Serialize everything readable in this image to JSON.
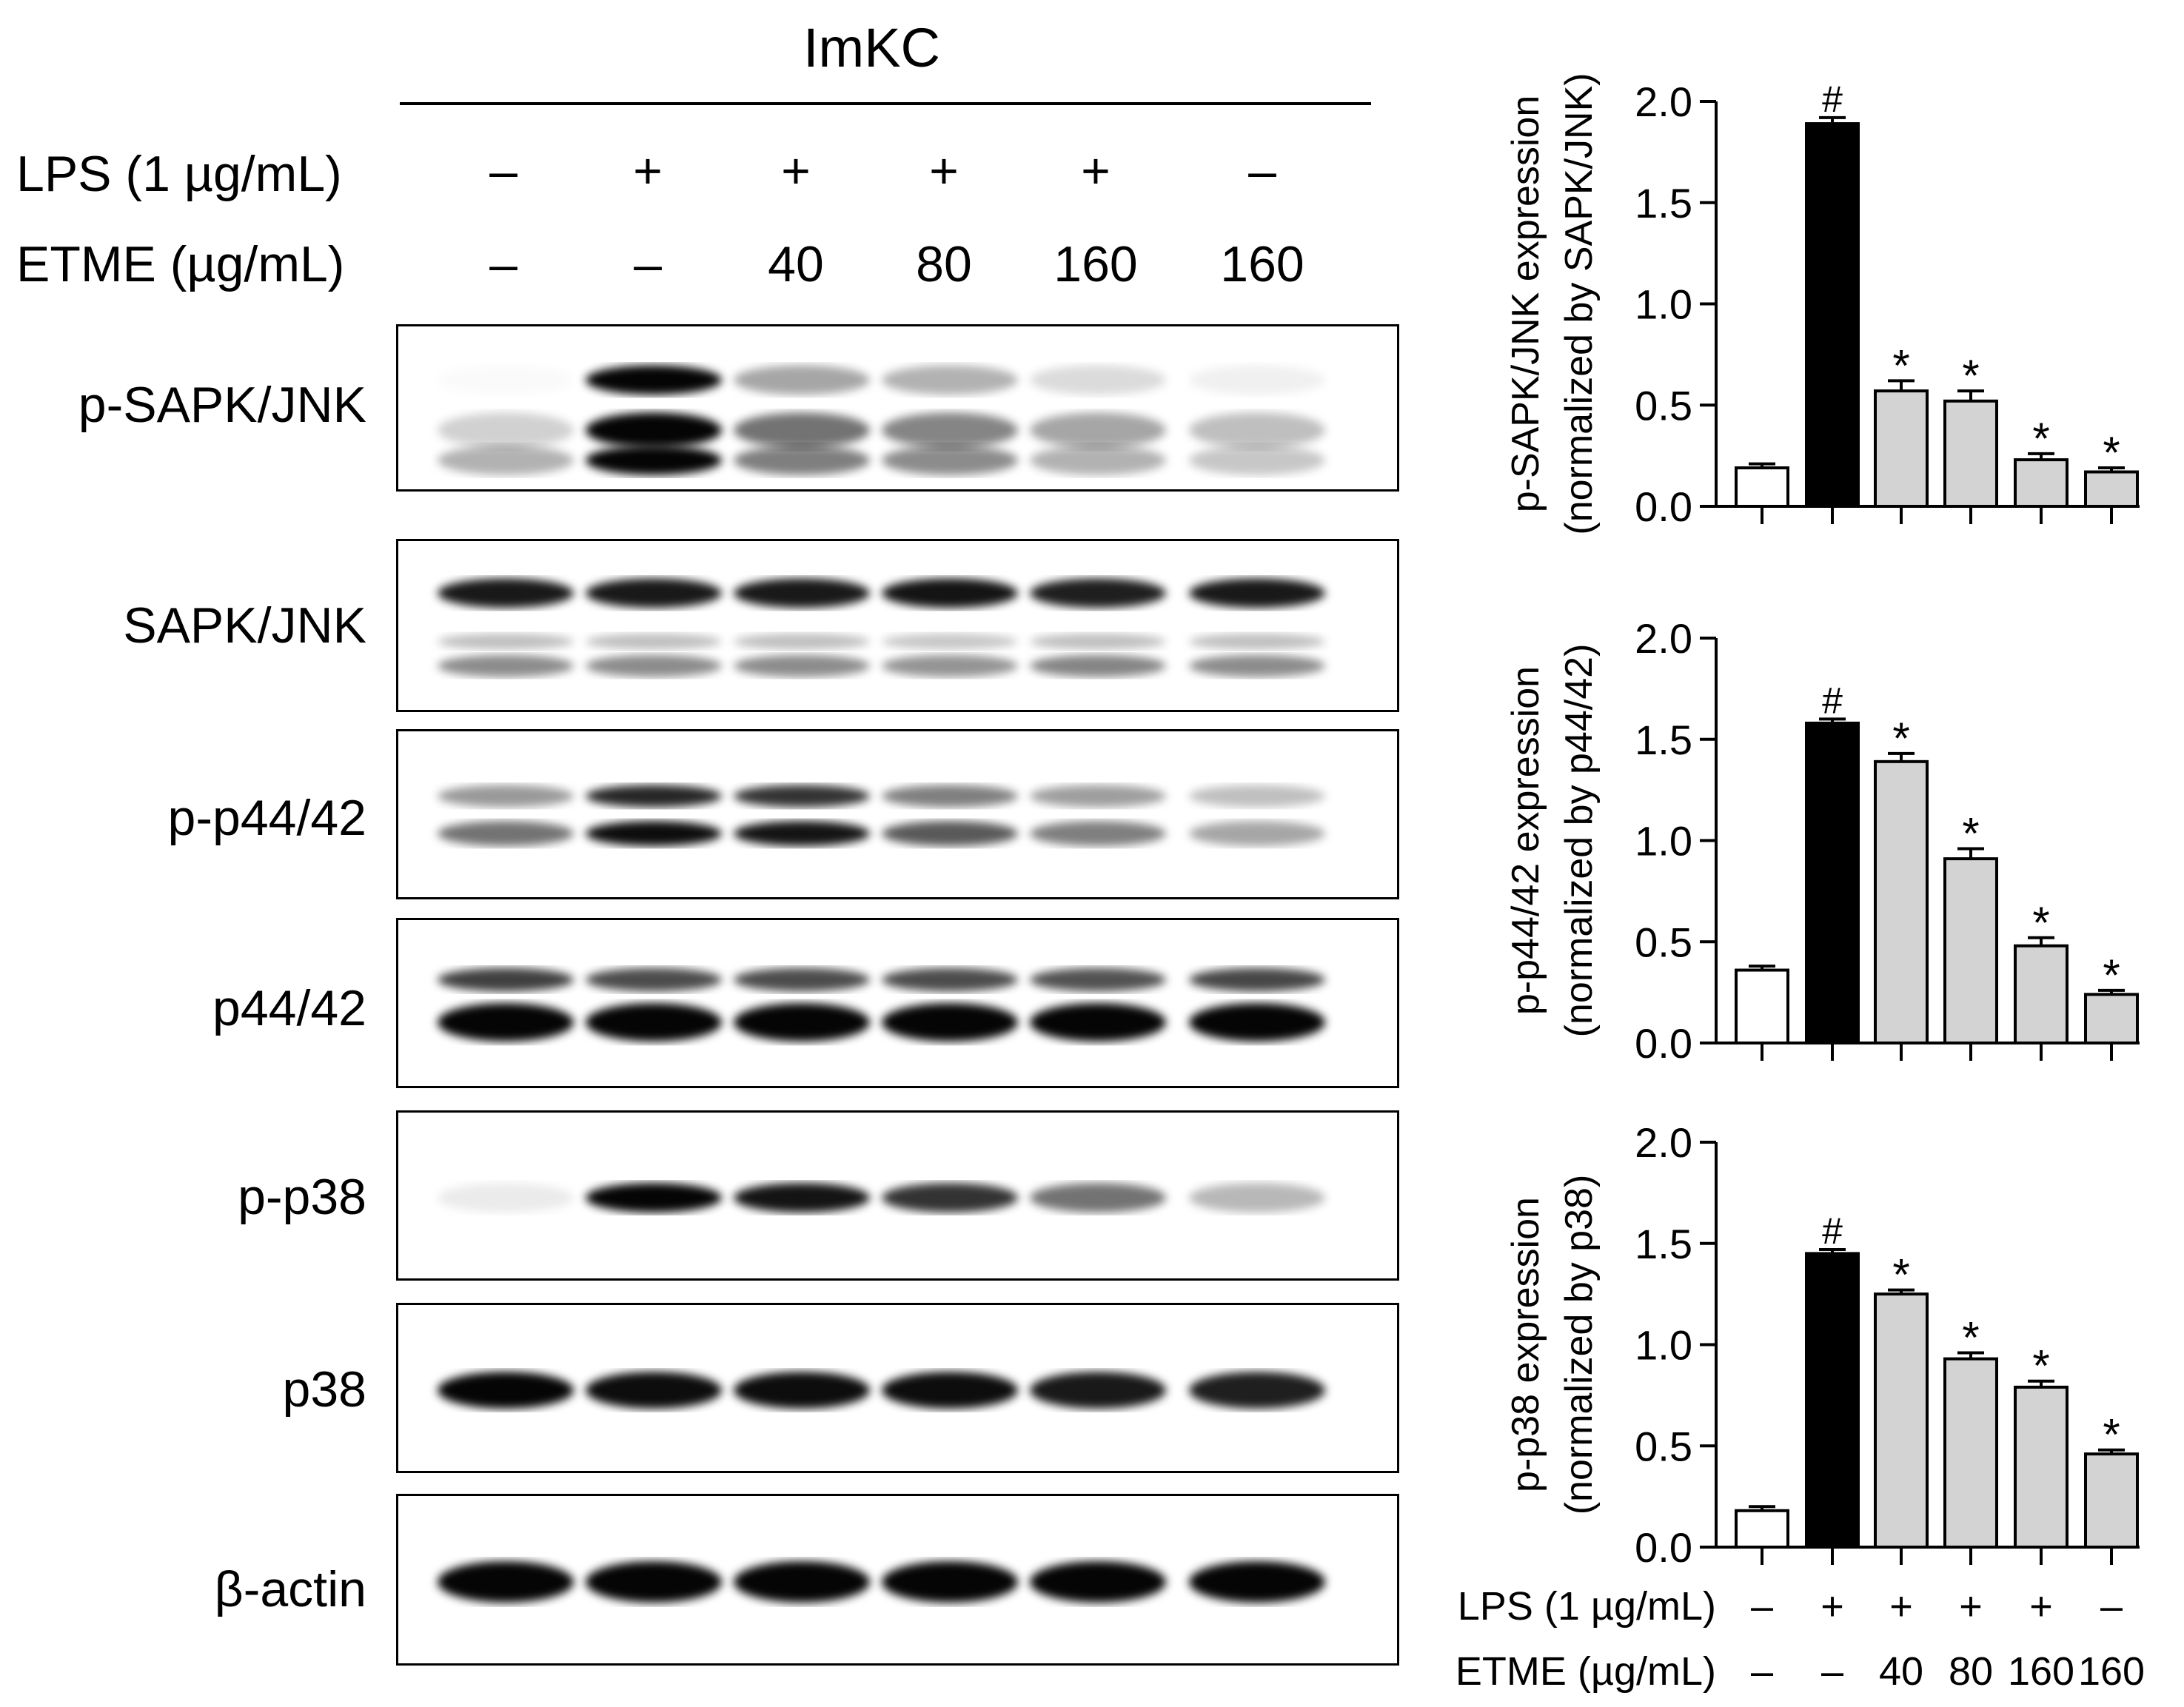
{
  "blot_panel": {
    "cell_line": "ImKC",
    "conditions": [
      {
        "label": "LPS (1 µg/mL)",
        "symbols": [
          "–",
          "+",
          "+",
          "+",
          "+",
          "–"
        ]
      },
      {
        "label": "ETME (µg/mL)",
        "symbols": [
          "–",
          "–",
          "40",
          "80",
          "160",
          "160"
        ]
      }
    ],
    "blots": [
      {
        "label": "p-SAPK/JNK",
        "bands": [
          [
            0.22,
            0.28,
            0.92,
            0.95,
            0.4,
            0.55,
            0.32,
            0.48,
            0.22,
            0.38,
            0.18,
            0.3
          ],
          [
            0.28
          ]
        ]
      },
      {
        "label": "SAPK/JNK"
      },
      {
        "label": "p-p44/42"
      },
      {
        "label": "p44/42"
      },
      {
        "label": "p-p38"
      },
      {
        "label": "p38"
      },
      {
        "label": "β-actin"
      }
    ]
  },
  "chart_data": [
    {
      "type": "bar",
      "ylabel_line1": "p-SAPK/JNK expression",
      "ylabel_line2": "(normalized by SAPK/JNK)",
      "ylim": [
        0,
        2.0
      ],
      "yticks": [
        "0.0",
        "0.5",
        "1.0",
        "1.5",
        "2.0"
      ],
      "values": [
        0.19,
        1.89,
        0.57,
        0.52,
        0.23,
        0.17
      ],
      "errors": [
        0.02,
        0.03,
        0.05,
        0.05,
        0.03,
        0.02
      ],
      "marks": [
        "",
        "#",
        "*",
        "*",
        "*",
        "*"
      ],
      "colors": [
        "#ffffff",
        "#000000",
        "#d3d3d3",
        "#d3d3d3",
        "#d3d3d3",
        "#d3d3d3"
      ]
    },
    {
      "type": "bar",
      "ylabel_line1": "p-p44/42 expression",
      "ylabel_line2": "(normalized by p44/42)",
      "ylim": [
        0,
        2.0
      ],
      "yticks": [
        "0.0",
        "0.5",
        "1.0",
        "1.5",
        "2.0"
      ],
      "values": [
        0.36,
        1.58,
        1.39,
        0.91,
        0.48,
        0.24
      ],
      "errors": [
        0.02,
        0.02,
        0.04,
        0.05,
        0.04,
        0.02
      ],
      "marks": [
        "",
        "#",
        "*",
        "*",
        "*",
        "*"
      ],
      "colors": [
        "#ffffff",
        "#000000",
        "#d3d3d3",
        "#d3d3d3",
        "#d3d3d3",
        "#d3d3d3"
      ]
    },
    {
      "type": "bar",
      "ylabel_line1": "p-p38 expression",
      "ylabel_line2": "(normalized by p38)",
      "ylim": [
        0,
        2.0
      ],
      "yticks": [
        "0.0",
        "0.5",
        "1.0",
        "1.5",
        "2.0"
      ],
      "values": [
        0.18,
        1.45,
        1.25,
        0.93,
        0.79,
        0.46
      ],
      "errors": [
        0.02,
        0.02,
        0.02,
        0.03,
        0.03,
        0.02
      ],
      "marks": [
        "",
        "#",
        "*",
        "*",
        "*",
        "*"
      ],
      "colors": [
        "#ffffff",
        "#000000",
        "#d3d3d3",
        "#d3d3d3",
        "#d3d3d3",
        "#d3d3d3"
      ]
    }
  ],
  "chart_conditions": [
    {
      "label": "LPS (1 µg/mL)",
      "symbols": [
        "–",
        "+",
        "+",
        "+",
        "+",
        "–"
      ]
    },
    {
      "label": "ETME (µg/mL)",
      "symbols": [
        "–",
        "–",
        "40",
        "80",
        "160",
        "160"
      ]
    }
  ]
}
